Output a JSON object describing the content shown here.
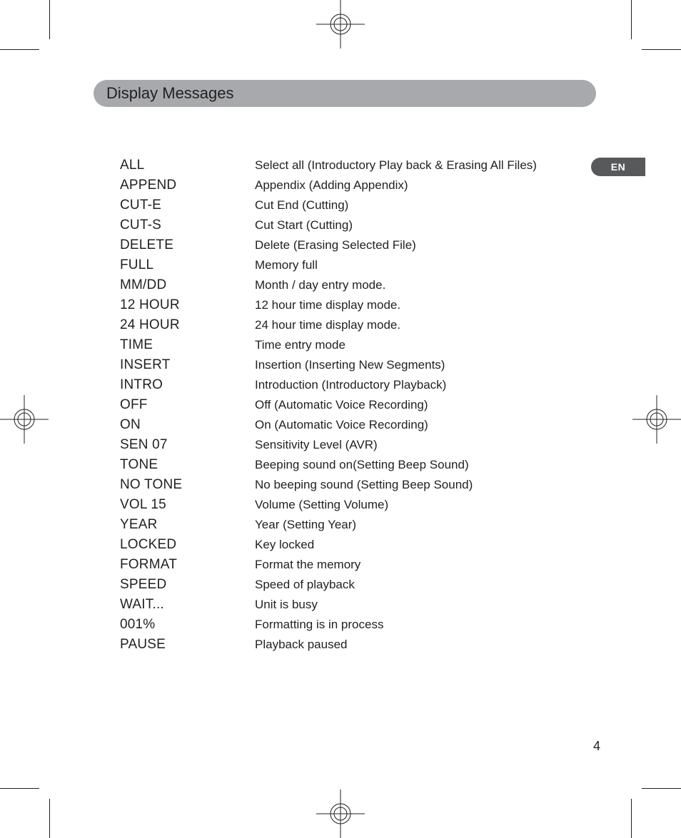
{
  "title": "Display Messages",
  "language_badge": "EN",
  "page_number": "4",
  "entries": [
    {
      "term": "ALL",
      "desc": "Select all (Introductory Play back & Erasing All Files)"
    },
    {
      "term": "APPEND",
      "desc": "Appendix (Adding Appendix)"
    },
    {
      "term": "CUT-E",
      "desc": "Cut End (Cutting)"
    },
    {
      "term": "CUT-S",
      "desc": "Cut Start (Cutting)"
    },
    {
      "term": "DELETE",
      "desc": "Delete (Erasing Selected File)"
    },
    {
      "term": "FULL",
      "desc": "Memory full"
    },
    {
      "term": "MM/DD",
      "desc": "Month / day entry mode."
    },
    {
      "term": "12 HOUR",
      "desc": "12 hour time display mode."
    },
    {
      "term": "24 HOUR",
      "desc": "24 hour time display mode."
    },
    {
      "term": "TIME",
      "desc": "Time entry mode"
    },
    {
      "term": "INSERT",
      "desc": "Insertion (Inserting New Segments)"
    },
    {
      "term": "INTRO",
      "desc": "Introduction (Introductory Playback)"
    },
    {
      "term": "OFF",
      "desc": "Off (Automatic Voice Recording)"
    },
    {
      "term": "ON",
      "desc": "On (Automatic Voice Recording)"
    },
    {
      "term": "SEN 07",
      "desc": "Sensitivity Level (AVR)"
    },
    {
      "term": "TONE",
      "desc": "Beeping sound on(Setting Beep Sound)"
    },
    {
      "term": "NO TONE",
      "desc": "No beeping sound (Setting Beep Sound)"
    },
    {
      "term": "VOL 15",
      "desc": "Volume (Setting Volume)"
    },
    {
      "term": "YEAR",
      "desc": "Year (Setting Year)"
    },
    {
      "term": "LOCKED",
      "desc": "Key locked"
    },
    {
      "term": "FORMAT",
      "desc": "Format the memory"
    },
    {
      "term": "SPEED",
      "desc": "Speed of playback"
    },
    {
      "term": "WAIT...",
      "desc": "Unit is busy"
    },
    {
      "term": "001%",
      "desc": "Formatting is in process"
    },
    {
      "term": "PAUSE",
      "desc": "Playback paused"
    }
  ],
  "colors": {
    "title_bar_bg": "#a7a9ac",
    "badge_bg": "#58595b",
    "text": "#231f20",
    "page_bg": "#ffffff"
  }
}
